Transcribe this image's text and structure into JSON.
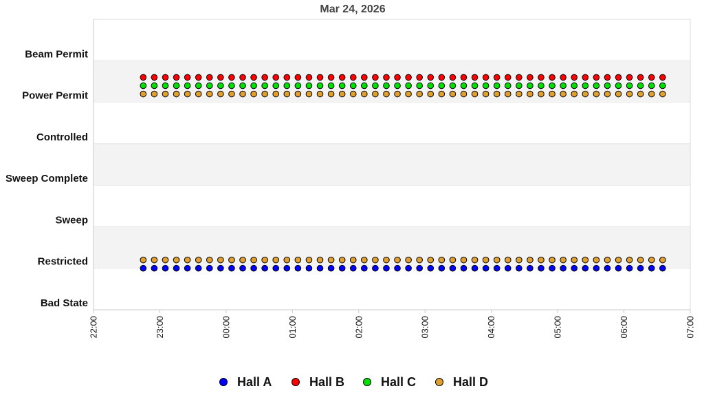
{
  "chart_data": {
    "type": "scatter",
    "title": "Mar 24, 2026",
    "y_categories": [
      "Bad State",
      "Restricted",
      "Sweep",
      "Sweep Complete",
      "Controlled",
      "Power Permit",
      "Beam Permit"
    ],
    "x_ticks": [
      "22:00",
      "23:00",
      "00:00",
      "01:00",
      "02:00",
      "03:00",
      "04:00",
      "05:00",
      "06:00",
      "07:00"
    ],
    "x_range": [
      "22:00",
      "07:00"
    ],
    "x_sample_start": "22:45",
    "x_sample_end": "06:35",
    "x_sample_interval_min": 10,
    "grid": "alternating horizontal bands",
    "legend_position": "bottom",
    "series": [
      {
        "name": "Hall A",
        "color": "#0000ff",
        "state": "Restricted",
        "offset": 0.0
      },
      {
        "name": "Hall B",
        "color": "#ff0000",
        "state": "Power Permit",
        "offset": 0.6
      },
      {
        "name": "Hall C",
        "color": "#00e000",
        "state": "Power Permit",
        "offset": 0.4
      },
      {
        "name": "Hall D",
        "color": "#e0a030",
        "state": [
          "Power Permit",
          "Restricted"
        ],
        "offset": 0.2
      }
    ]
  }
}
